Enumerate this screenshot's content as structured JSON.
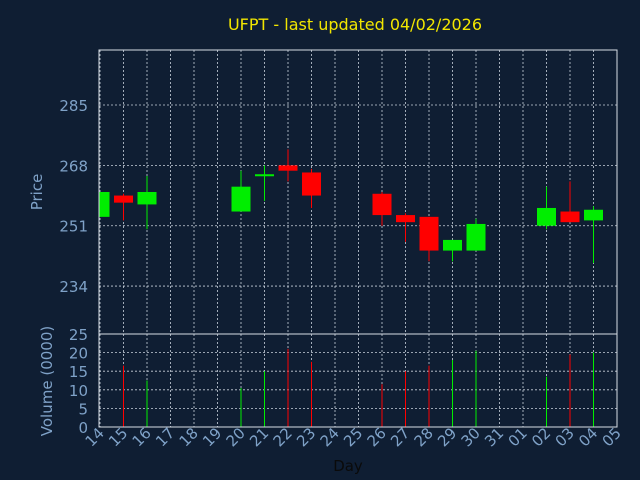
{
  "colors": {
    "background": "#0f1e33",
    "frame": "#d7dde6",
    "grid": "#c9d1dc",
    "title": "#f2e600",
    "axis_text": "#7fa2c8",
    "xlabel_text": "#0a0a0a",
    "up": "#00ee00",
    "down": "#ff0000"
  },
  "chart_data": {
    "type": "candlestick",
    "title": "UFPT - last updated 04/02/2026",
    "xlabel": "Day",
    "price_panel": {
      "ylabel": "Price",
      "yticks": [
        234,
        251,
        268,
        285
      ],
      "ylim": [
        220.5,
        300.5
      ],
      "grid": true
    },
    "volume_panel": {
      "ylabel": "Volume (0000)",
      "yticks": [
        0,
        5,
        10,
        15,
        20,
        25
      ],
      "ylim": [
        0,
        25
      ],
      "grid": true
    },
    "x_tick_labels": [
      "14",
      "15",
      "16",
      "17",
      "18",
      "19",
      "20",
      "21",
      "22",
      "23",
      "24",
      "25",
      "26",
      "27",
      "28",
      "29",
      "30",
      "31",
      "01",
      "02",
      "03",
      "04",
      "05"
    ],
    "candles": [
      {
        "day": "14",
        "open": 253.5,
        "close": 260.5,
        "high": 260.5,
        "low": 253.5,
        "volume": 0
      },
      {
        "day": "15",
        "open": 259.5,
        "close": 257.5,
        "high": 260.0,
        "low": 252.5,
        "volume": 16.5
      },
      {
        "day": "16",
        "open": 257.0,
        "close": 260.5,
        "high": 265.0,
        "low": 250.0,
        "volume": 12.5
      },
      {
        "day": "20",
        "open": 255.0,
        "close": 262.0,
        "high": 266.5,
        "low": 255.0,
        "volume": 10.5
      },
      {
        "day": "21",
        "open": 265.0,
        "close": 265.5,
        "high": 268.0,
        "low": 258.0,
        "volume": 15.0
      },
      {
        "day": "22",
        "open": 268.0,
        "close": 266.5,
        "high": 272.5,
        "low": 263.5,
        "volume": 21.0
      },
      {
        "day": "23",
        "open": 266.0,
        "close": 259.5,
        "high": 267.0,
        "low": 256.0,
        "volume": 17.5
      },
      {
        "day": "26",
        "open": 260.0,
        "close": 254.0,
        "high": 260.5,
        "low": 251.0,
        "volume": 11.5
      },
      {
        "day": "27",
        "open": 254.0,
        "close": 252.0,
        "high": 254.5,
        "low": 246.5,
        "volume": 15.0
      },
      {
        "day": "28",
        "open": 253.5,
        "close": 244.0,
        "high": 253.5,
        "low": 241.0,
        "volume": 16.5
      },
      {
        "day": "29",
        "open": 244.0,
        "close": 247.0,
        "high": 247.0,
        "low": 241.0,
        "volume": 18.0
      },
      {
        "day": "30",
        "open": 244.0,
        "close": 251.5,
        "high": 253.0,
        "low": 244.0,
        "volume": 20.5
      },
      {
        "day": "02",
        "open": 251.0,
        "close": 256.0,
        "high": 262.0,
        "low": 250.0,
        "volume": 13.5
      },
      {
        "day": "03",
        "open": 255.0,
        "close": 252.0,
        "high": 263.5,
        "low": 252.0,
        "volume": 19.5
      },
      {
        "day": "04",
        "open": 252.5,
        "close": 255.5,
        "high": 256.5,
        "low": 240.5,
        "volume": 20.0
      }
    ]
  }
}
